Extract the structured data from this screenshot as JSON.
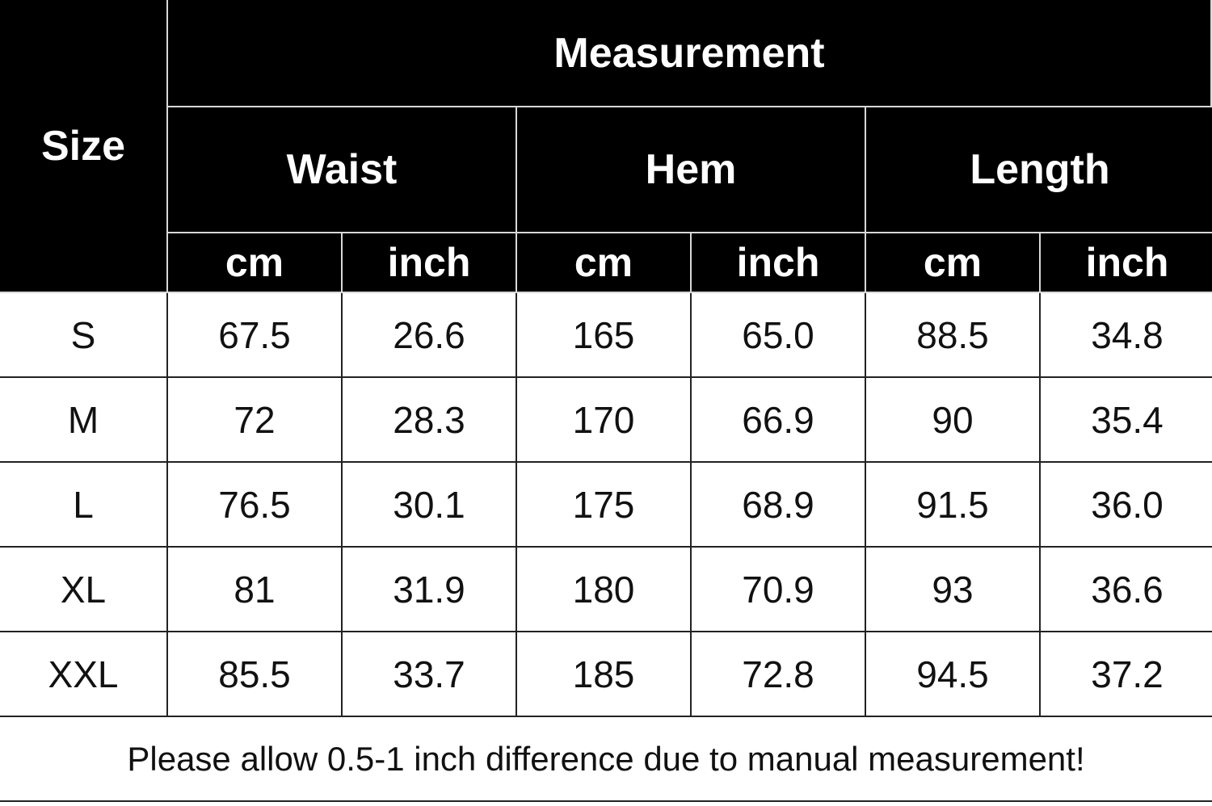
{
  "header": {
    "size": "Size",
    "measurement": "Measurement",
    "groups": [
      "Waist",
      "Hem",
      "Length"
    ],
    "units": [
      "cm",
      "inch",
      "cm",
      "inch",
      "cm",
      "inch"
    ]
  },
  "rows": [
    [
      "S",
      "67.5",
      "26.6",
      "165",
      "65.0",
      "88.5",
      "34.8"
    ],
    [
      "M",
      "72",
      "28.3",
      "170",
      "66.9",
      "90",
      "35.4"
    ],
    [
      "L",
      "76.5",
      "30.1",
      "175",
      "68.9",
      "91.5",
      "36.0"
    ],
    [
      "XL",
      "81",
      "31.9",
      "180",
      "70.9",
      "93",
      "36.6"
    ],
    [
      "XXL",
      "85.5",
      "33.7",
      "185",
      "72.8",
      "94.5",
      "37.2"
    ]
  ],
  "note": "Please allow 0.5-1 inch difference due to manual measurement!"
}
